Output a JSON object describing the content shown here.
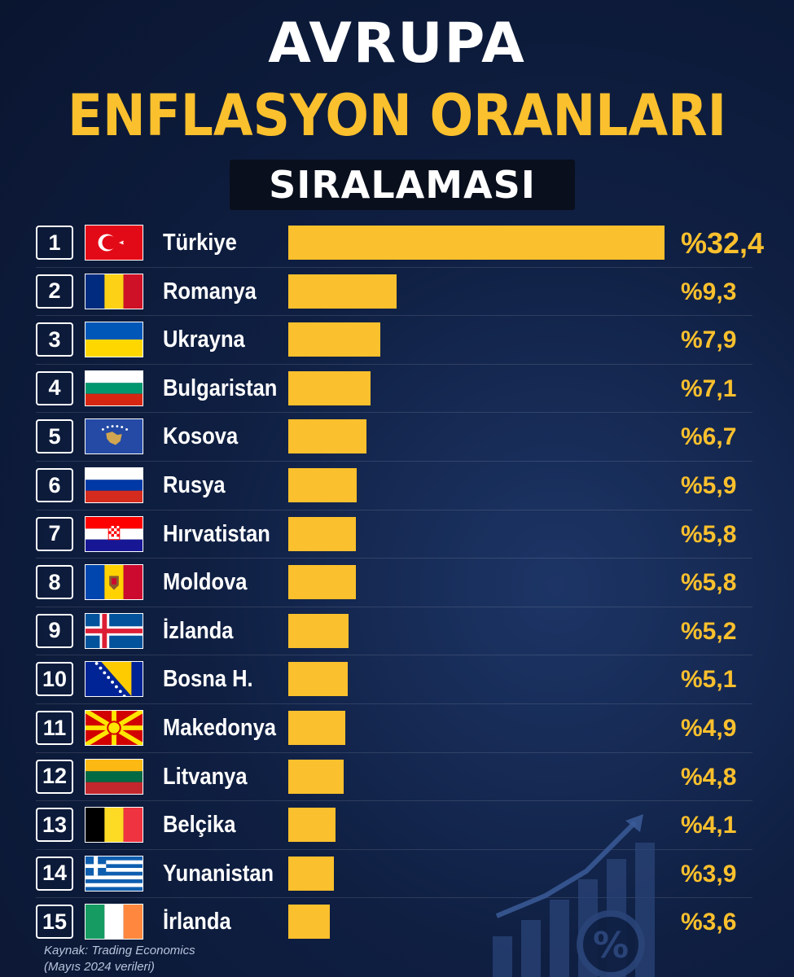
{
  "header": {
    "title_line1": "AVRUPA",
    "title_line2": "ENFLASYON ORANLARI",
    "subtitle": "SIRALAMASI"
  },
  "source": {
    "line1": "Kaynak: Trading Economics",
    "line2": "(Mayıs 2024 verileri)"
  },
  "colors": {
    "accent": "#fbc02d",
    "background": "#0f1f42",
    "text": "#ffffff"
  },
  "chart_data": {
    "type": "bar",
    "orientation": "horizontal",
    "title": "AVRUPA ENFLASYON ORANLARI SIRALAMASI",
    "ranks": [
      "1",
      "2",
      "3",
      "4",
      "5",
      "6",
      "7",
      "8",
      "9",
      "10",
      "11",
      "12",
      "13",
      "14",
      "15"
    ],
    "categories": [
      "Türkiye",
      "Romanya",
      "Ukrayna",
      "Bulgaristan",
      "Kosova",
      "Rusya",
      "Hırvatistan",
      "Moldova",
      "İzlanda",
      "Bosna H.",
      "Makedonya",
      "Litvanya",
      "Belçika",
      "Yunanistan",
      "İrlanda"
    ],
    "values": [
      32.4,
      9.3,
      7.9,
      7.1,
      6.7,
      5.9,
      5.8,
      5.8,
      5.2,
      5.1,
      4.9,
      4.8,
      4.1,
      3.9,
      3.6
    ],
    "value_labels": [
      "%32,4",
      "%9,3",
      "%7,9",
      "%7,1",
      "%6,7",
      "%5,9",
      "%5,8",
      "%5,8",
      "%5,2",
      "%5,1",
      "%4,9",
      "%4,8",
      "%4,1",
      "%3,9",
      "%3,6"
    ],
    "flags": [
      "turkey-flag-icon",
      "romania-flag-icon",
      "ukraine-flag-icon",
      "bulgaria-flag-icon",
      "kosovo-flag-icon",
      "russia-flag-icon",
      "croatia-flag-icon",
      "moldova-flag-icon",
      "iceland-flag-icon",
      "bosnia-flag-icon",
      "macedonia-flag-icon",
      "lithuania-flag-icon",
      "belgium-flag-icon",
      "greece-flag-icon",
      "ireland-flag-icon"
    ],
    "bar_color": "#fbc02d",
    "grid": false,
    "legend": "none"
  }
}
